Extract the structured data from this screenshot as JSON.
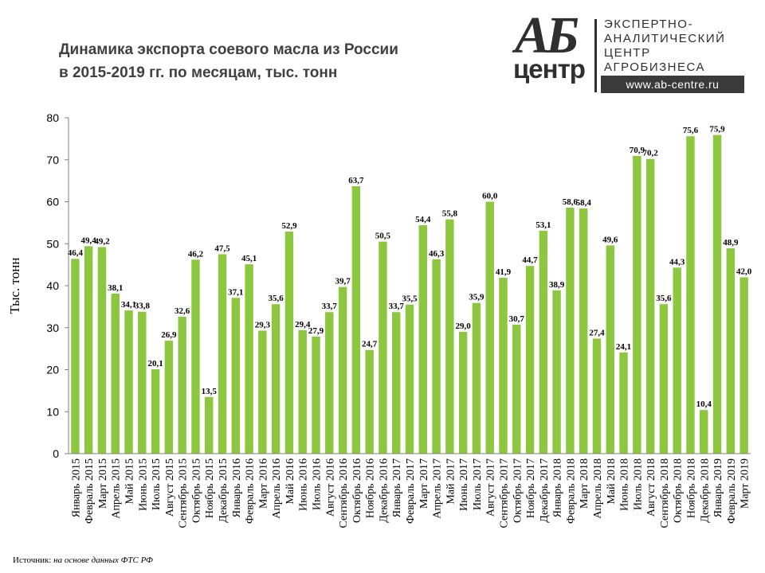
{
  "title": {
    "line1": "Динамика экспорта соевого масла из России",
    "line2": "в 2015-2019 гг. по месяцам, тыс. тонн"
  },
  "logo": {
    "mark_top": "АБ",
    "mark_bottom": "центр",
    "line1": "ЭКСПЕРТНО-",
    "line2": "АНАЛИТИЧЕСКИЙ",
    "line3": "ЦЕНТР",
    "line4": "АГРОБИЗНЕСА",
    "website": "www.ab-centre.ru"
  },
  "source": {
    "label": "Источник:",
    "text": "на основе данных ФТС РФ"
  },
  "colors": {
    "bar": "#8dc63f",
    "axis": "#808080"
  },
  "chart_data": {
    "type": "bar",
    "title": "Динамика экспорта соевого масла из России в 2015-2019 гг. по месяцам, тыс. тонн",
    "xlabel": "",
    "ylabel": "Тыс. тонн",
    "ylim": [
      0,
      80
    ],
    "yticks": [
      0,
      10,
      20,
      30,
      40,
      50,
      60,
      70,
      80
    ],
    "grid": false,
    "legend": "none",
    "categories": [
      "Январь 2015",
      "Февраль 2015",
      "Март 2015",
      "Апрель 2015",
      "Май 2015",
      "Июнь 2015",
      "Июль 2015",
      "Август 2015",
      "Сентябрь 2015",
      "Октябрь 2015",
      "Ноябрь 2015",
      "Декабрь 2015",
      "Январь 2016",
      "Февраль 2016",
      "Март 2016",
      "Апрель 2016",
      "Май 2016",
      "Июнь 2016",
      "Июль 2016",
      "Август 2016",
      "Сентябрь 2016",
      "Октябрь 2016",
      "Ноябрь 2016",
      "Декабрь 2016",
      "Январь 2017",
      "Февраль 2017",
      "Март 2017",
      "Апрель 2017",
      "Май 2017",
      "Июнь 2017",
      "Июль 2017",
      "Август 2017",
      "Сентябрь 2017",
      "Октябрь 2017",
      "Ноябрь 2017",
      "Декабрь 2017",
      "Январь 2018",
      "Февраль 2018",
      "Март 2018",
      "Апрель 2018",
      "Май 2018",
      "Июнь 2018",
      "Июль 2018",
      "Август 2018",
      "Сентябрь 2018",
      "Октябрь 2018",
      "Ноябрь 2018",
      "Декабрь 2018",
      "Январь 2019",
      "Февраль 2019",
      "Март 2019"
    ],
    "values": [
      46.4,
      49.4,
      49.2,
      38.1,
      34.1,
      33.8,
      20.1,
      26.9,
      32.6,
      46.2,
      13.5,
      47.5,
      37.1,
      45.1,
      29.3,
      35.6,
      52.9,
      29.4,
      27.9,
      33.7,
      39.7,
      63.7,
      24.7,
      50.5,
      33.7,
      35.5,
      54.4,
      46.3,
      55.8,
      29.0,
      35.9,
      60.0,
      41.9,
      30.7,
      44.7,
      53.1,
      38.9,
      58.6,
      58.4,
      27.4,
      49.6,
      24.1,
      70.9,
      70.2,
      35.6,
      44.3,
      75.6,
      10.4,
      75.9,
      48.9,
      42.0
    ],
    "value_labels": [
      "46,4",
      "49,4",
      "49,2",
      "38,1",
      "34,1",
      "33,8",
      "20,1",
      "26,9",
      "32,6",
      "46,2",
      "13,5",
      "47,5",
      "37,1",
      "45,1",
      "29,3",
      "35,6",
      "52,9",
      "29,4",
      "27,9",
      "33,7",
      "39,7",
      "63,7",
      "24,7",
      "50,5",
      "33,7",
      "35,5",
      "54,4",
      "46,3",
      "55,8",
      "29,0",
      "35,9",
      "60,0",
      "41,9",
      "30,7",
      "44,7",
      "53,1",
      "38,9",
      "58,6",
      "58,4",
      "27,4",
      "49,6",
      "24,1",
      "70,9",
      "70,2",
      "35,6",
      "44,3",
      "75,6",
      "10,4",
      "75,9",
      "48,9",
      "42,0"
    ]
  }
}
